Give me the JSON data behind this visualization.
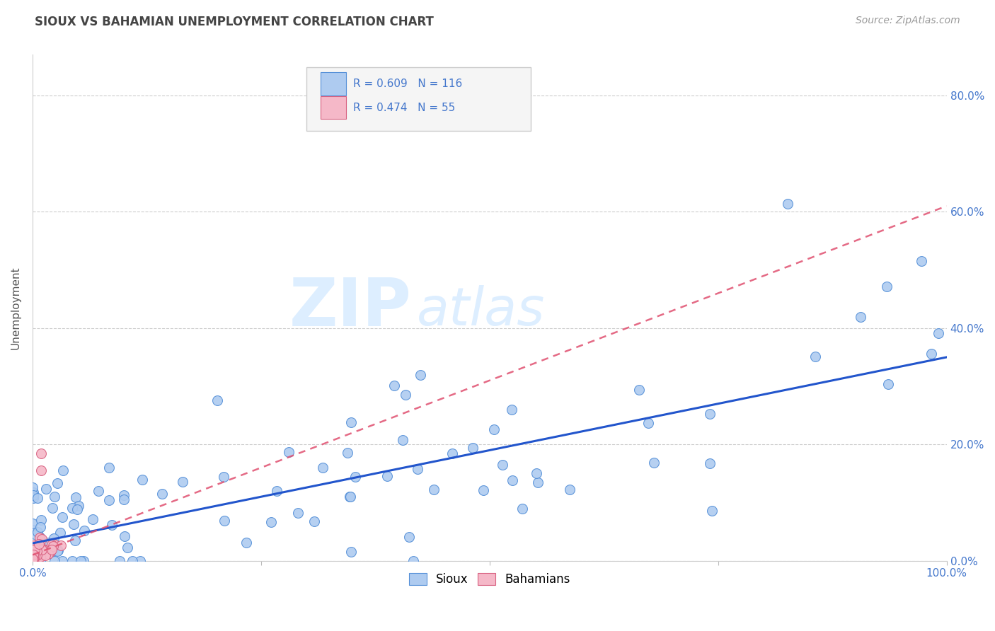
{
  "title": "SIOUX VS BAHAMIAN UNEMPLOYMENT CORRELATION CHART",
  "source_text": "Source: ZipAtlas.com",
  "ylabel": "Unemployment",
  "y_tick_labels": [
    "0.0%",
    "20.0%",
    "40.0%",
    "60.0%",
    "80.0%"
  ],
  "y_tick_values": [
    0.0,
    0.2,
    0.4,
    0.6,
    0.8
  ],
  "sioux_R": 0.609,
  "sioux_N": 116,
  "bahamian_R": 0.474,
  "bahamian_N": 55,
  "sioux_color": "#aecbf0",
  "sioux_edge_color": "#5590d8",
  "sioux_line_color": "#2255cc",
  "bahamian_color": "#f5b8c8",
  "bahamian_edge_color": "#d86080",
  "bahamian_line_color": "#e05070",
  "grid_color": "#cccccc",
  "background_color": "#ffffff",
  "watermark_zip": "ZIP",
  "watermark_atlas": "atlas",
  "watermark_color": "#ddeeff",
  "legend_box_color": "#f5f5f5",
  "legend_box_edge": "#cccccc",
  "title_color": "#444444",
  "source_color": "#999999",
  "tick_label_color": "#4477cc"
}
